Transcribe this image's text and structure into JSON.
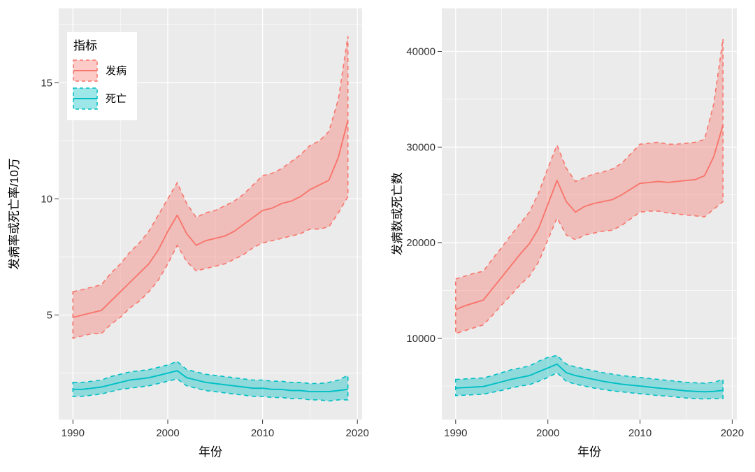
{
  "figure": {
    "background": "#FFFFFF",
    "panel_background": "#EBEBEB",
    "grid_color": "#FFFFFF",
    "tick_color": "#333333"
  },
  "legend": {
    "title": "指标",
    "entries": [
      {
        "label": "发病",
        "color": "#F8766D"
      },
      {
        "label": "死亡",
        "color": "#00BFC4"
      }
    ]
  },
  "chart_data": [
    {
      "type": "area",
      "title": "",
      "xlabel": "年份",
      "ylabel": "发病率或死亡率/10万",
      "xlim": [
        1988.5,
        2020.5
      ],
      "ylim": [
        0.5,
        18.2
      ],
      "x_ticks": [
        1990,
        2000,
        2010,
        2020
      ],
      "x_tick_labels": [
        "1990",
        "2000",
        "2010",
        "2020"
      ],
      "y_ticks": [
        5,
        10,
        15
      ],
      "y_tick_labels": [
        "5",
        "10",
        "15"
      ],
      "grid": true,
      "legend_position": "inside-top-left",
      "x": [
        1990,
        1991,
        1992,
        1993,
        1994,
        1995,
        1996,
        1997,
        1998,
        1999,
        2000,
        2001,
        2002,
        2003,
        2004,
        2005,
        2006,
        2007,
        2008,
        2009,
        2010,
        2011,
        2012,
        2013,
        2014,
        2015,
        2016,
        2017,
        2018,
        2019
      ],
      "series": [
        {
          "name": "发病",
          "color": "#F8766D",
          "mid": [
            4.9,
            5.0,
            5.1,
            5.2,
            5.6,
            6.0,
            6.4,
            6.8,
            7.2,
            7.8,
            8.6,
            9.3,
            8.5,
            8.0,
            8.2,
            8.3,
            8.4,
            8.6,
            8.9,
            9.2,
            9.5,
            9.6,
            9.8,
            9.9,
            10.1,
            10.4,
            10.6,
            10.8,
            11.8,
            13.4
          ],
          "lower": [
            4.0,
            4.1,
            4.2,
            4.2,
            4.6,
            4.9,
            5.3,
            5.6,
            6.0,
            6.5,
            7.2,
            8.0,
            7.3,
            6.9,
            7.0,
            7.1,
            7.2,
            7.4,
            7.6,
            7.9,
            8.1,
            8.2,
            8.3,
            8.4,
            8.5,
            8.7,
            8.7,
            8.8,
            9.4,
            10.1
          ],
          "upper": [
            6.0,
            6.1,
            6.2,
            6.3,
            6.8,
            7.2,
            7.7,
            8.1,
            8.6,
            9.3,
            10.0,
            10.7,
            9.8,
            9.2,
            9.4,
            9.5,
            9.7,
            9.9,
            10.2,
            10.6,
            11.0,
            11.1,
            11.3,
            11.6,
            11.9,
            12.3,
            12.5,
            12.9,
            14.3,
            17.0
          ]
        },
        {
          "name": "死亡",
          "color": "#00BFC4",
          "mid": [
            1.8,
            1.8,
            1.85,
            1.9,
            2.0,
            2.1,
            2.2,
            2.25,
            2.3,
            2.4,
            2.5,
            2.6,
            2.3,
            2.2,
            2.1,
            2.05,
            2.0,
            1.95,
            1.9,
            1.85,
            1.85,
            1.8,
            1.8,
            1.75,
            1.75,
            1.7,
            1.7,
            1.7,
            1.75,
            1.8
          ],
          "lower": [
            1.5,
            1.5,
            1.55,
            1.6,
            1.7,
            1.8,
            1.85,
            1.9,
            1.95,
            2.05,
            2.15,
            2.25,
            1.95,
            1.85,
            1.75,
            1.7,
            1.65,
            1.6,
            1.55,
            1.5,
            1.5,
            1.45,
            1.45,
            1.4,
            1.4,
            1.35,
            1.35,
            1.3,
            1.35,
            1.35
          ],
          "upper": [
            2.1,
            2.1,
            2.15,
            2.2,
            2.35,
            2.45,
            2.55,
            2.6,
            2.65,
            2.75,
            2.85,
            3.0,
            2.65,
            2.55,
            2.45,
            2.4,
            2.35,
            2.3,
            2.25,
            2.2,
            2.2,
            2.15,
            2.15,
            2.1,
            2.1,
            2.05,
            2.05,
            2.1,
            2.2,
            2.4
          ]
        }
      ]
    },
    {
      "type": "area",
      "title": "",
      "xlabel": "年份",
      "ylabel": "发病数或死亡数",
      "xlim": [
        1988.5,
        2020.5
      ],
      "ylim": [
        1500,
        44500
      ],
      "x_ticks": [
        1990,
        2000,
        2010,
        2020
      ],
      "x_tick_labels": [
        "1990",
        "2000",
        "2010",
        "2020"
      ],
      "y_ticks": [
        10000,
        20000,
        30000,
        40000
      ],
      "y_tick_labels": [
        "10000",
        "20000",
        "30000",
        "40000"
      ],
      "grid": true,
      "legend_position": "none",
      "x": [
        1990,
        1991,
        1992,
        1993,
        1994,
        1995,
        1996,
        1997,
        1998,
        1999,
        2000,
        2001,
        2002,
        2003,
        2004,
        2005,
        2006,
        2007,
        2008,
        2009,
        2010,
        2011,
        2012,
        2013,
        2014,
        2015,
        2016,
        2017,
        2018,
        2019
      ],
      "series": [
        {
          "name": "发病",
          "color": "#F8766D",
          "mid": [
            13000,
            13400,
            13700,
            14000,
            15200,
            16400,
            17600,
            18800,
            19900,
            21500,
            24000,
            26500,
            24300,
            23200,
            23800,
            24100,
            24300,
            24500,
            25000,
            25600,
            26200,
            26300,
            26400,
            26300,
            26400,
            26500,
            26600,
            27000,
            29000,
            32300
          ],
          "lower": [
            10500,
            10800,
            11100,
            11400,
            12400,
            13500,
            14500,
            15600,
            16500,
            18000,
            20300,
            22600,
            20800,
            20300,
            20800,
            21000,
            21200,
            21300,
            21800,
            22500,
            23200,
            23300,
            23300,
            23100,
            23000,
            22900,
            22800,
            22700,
            23500,
            24300
          ],
          "upper": [
            16200,
            16500,
            16800,
            17000,
            18300,
            19500,
            20800,
            22000,
            23200,
            25200,
            27800,
            30200,
            27800,
            26400,
            26800,
            27200,
            27400,
            27700,
            28300,
            29300,
            30300,
            30400,
            30500,
            30300,
            30300,
            30400,
            30500,
            30800,
            34500,
            41300
          ]
        },
        {
          "name": "死亡",
          "color": "#00BFC4",
          "mid": [
            4800,
            4850,
            4900,
            4950,
            5200,
            5450,
            5700,
            5900,
            6100,
            6500,
            6900,
            7300,
            6400,
            6100,
            5900,
            5700,
            5500,
            5350,
            5200,
            5100,
            5000,
            4900,
            4800,
            4700,
            4600,
            4500,
            4450,
            4400,
            4450,
            4550
          ],
          "lower": [
            4000,
            4050,
            4100,
            4150,
            4350,
            4550,
            4800,
            5000,
            5150,
            5500,
            5900,
            6400,
            5500,
            5200,
            5000,
            4800,
            4650,
            4500,
            4400,
            4300,
            4200,
            4100,
            4000,
            3950,
            3850,
            3750,
            3700,
            3650,
            3700,
            3700
          ],
          "upper": [
            5700,
            5750,
            5800,
            5850,
            6100,
            6400,
            6700,
            6900,
            7100,
            7600,
            8000,
            8200,
            7300,
            7000,
            6800,
            6600,
            6400,
            6250,
            6100,
            6000,
            5900,
            5800,
            5700,
            5600,
            5500,
            5400,
            5350,
            5300,
            5400,
            5700
          ]
        }
      ]
    }
  ]
}
